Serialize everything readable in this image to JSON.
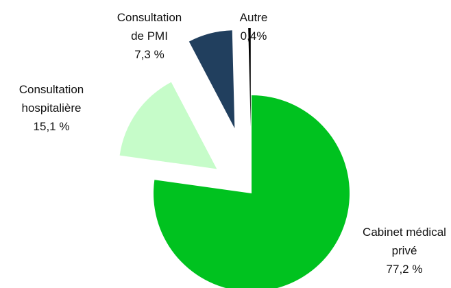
{
  "chart_data": {
    "type": "pie",
    "categories": [
      "Cabinet médical privé",
      "Consultation hospitalière",
      "Consultation de PMI",
      "Autre"
    ],
    "values": [
      77.2,
      15.1,
      7.3,
      0.4
    ],
    "value_labels": [
      "77,2 %",
      "15,1 %",
      "7,3 %",
      "0,4%"
    ],
    "colors": [
      "#00c21f",
      "#c6fcc9",
      "#213f5e",
      "#000000"
    ],
    "start_angle": 0,
    "direction": "clockwise"
  }
}
